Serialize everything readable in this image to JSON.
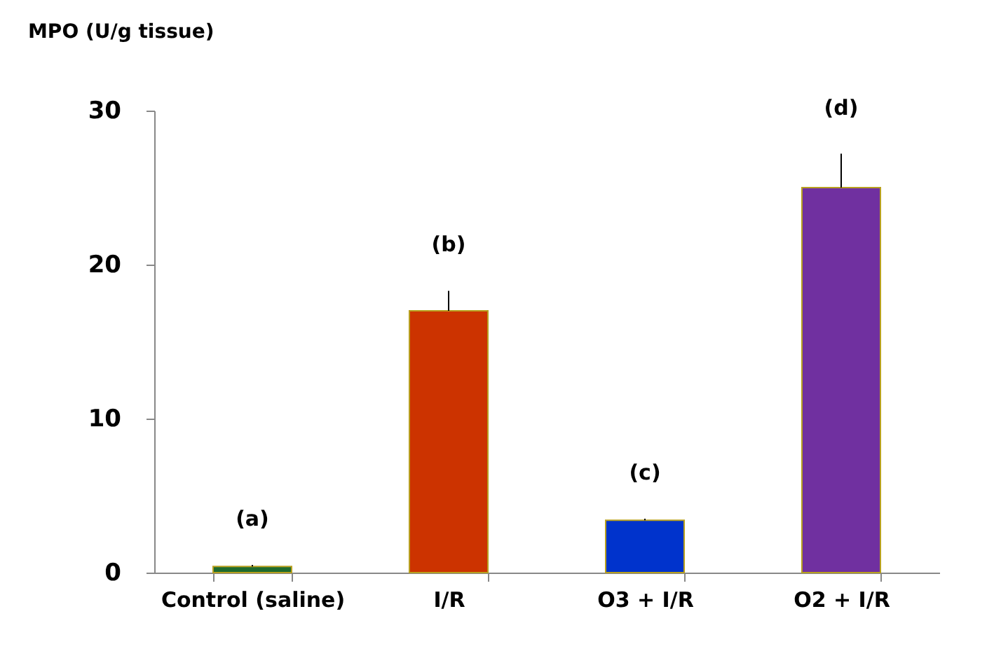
{
  "chart_data": {
    "type": "bar",
    "ylabel": "MPO (U/g tissue)",
    "categories": [
      "Control (saline)",
      "I/R",
      "O3 + I/R",
      "O2 + I/R"
    ],
    "values": [
      0.4,
      17.0,
      3.4,
      25.0
    ],
    "errors": [
      0.1,
      1.3,
      0.1,
      2.2
    ],
    "colors": [
      "#1e6b2e",
      "#cc3300",
      "#0033cc",
      "#7030a0"
    ],
    "ylim": [
      0,
      30
    ],
    "yticks": [
      0,
      10,
      20,
      30
    ],
    "grid": false,
    "annotations": [
      "(a)",
      "(b)",
      "(c)",
      "(d)"
    ]
  }
}
